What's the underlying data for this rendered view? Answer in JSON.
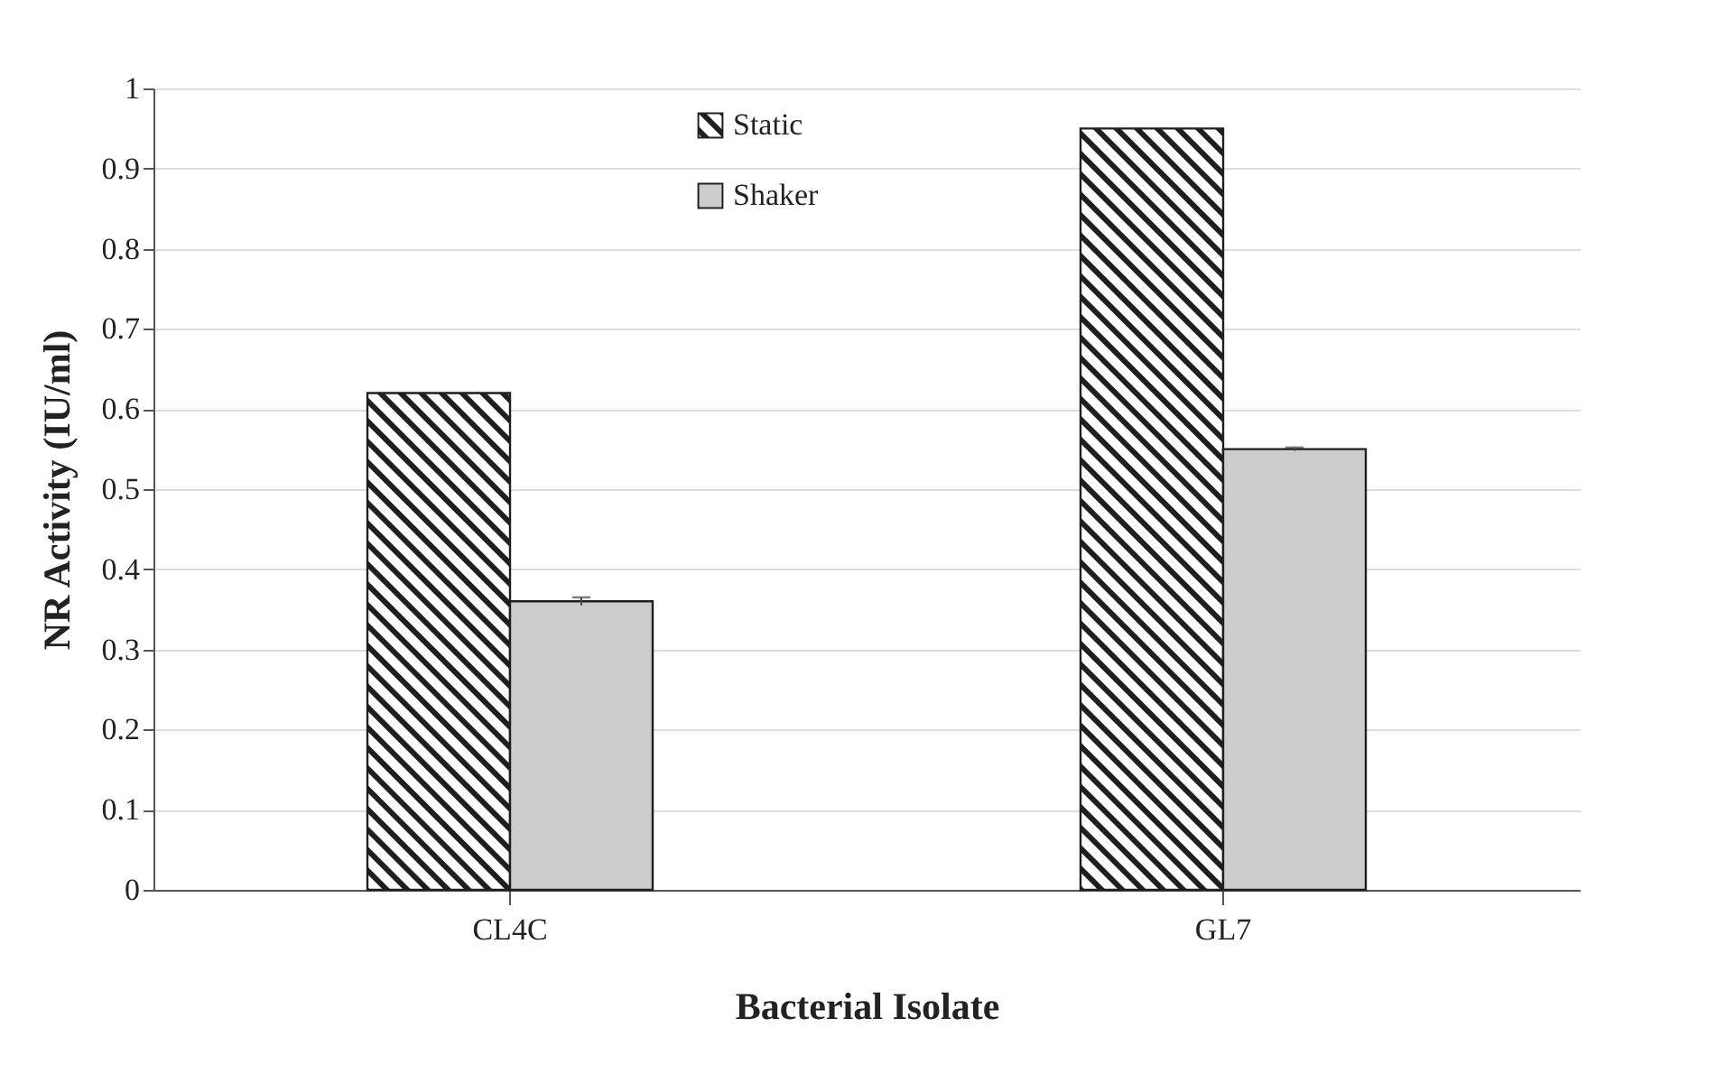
{
  "chart_data": {
    "type": "bar",
    "xlabel": "Bacterial Isolate",
    "ylabel": "NR Activity (IU/ml)",
    "categories": [
      "CL4C",
      "GL7"
    ],
    "series": [
      {
        "name": "Static",
        "color": "#1f1f1f",
        "values": [
          0.62,
          0.95
        ]
      },
      {
        "name": "Shaker",
        "color": "#cccccc",
        "values": [
          0.36,
          0.55
        ],
        "errors": [
          0.005,
          0.002
        ]
      }
    ],
    "ylim": [
      0,
      1
    ],
    "yticks": [
      0,
      0.1,
      0.2,
      0.3,
      0.4,
      0.5,
      0.6,
      0.7,
      0.8,
      0.9,
      1
    ],
    "grid": "y",
    "legend": "top"
  }
}
